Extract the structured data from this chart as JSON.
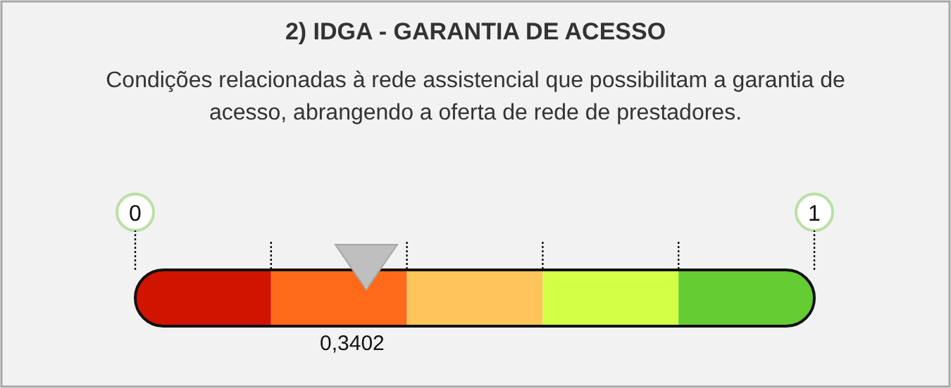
{
  "chart_data": {
    "type": "bar",
    "title": "2) IDGA - GARANTIA DE ACESSO",
    "subtitle": "Condições relacionadas à rede assistencial que possibilitam a garantia de acesso, abrangendo a oferta de rede de prestadores.",
    "orientation": "horizontal",
    "stacked": true,
    "categories": [
      null
    ],
    "series": [
      {
        "color": "#d11400",
        "values": [
          0.2
        ]
      },
      {
        "color": "#ff6a1a",
        "values": [
          0.2
        ]
      },
      {
        "color": "#ffc55a",
        "values": [
          0.2
        ]
      },
      {
        "color": "#d4ff47",
        "values": [
          0.2
        ]
      },
      {
        "color": "#66cc33",
        "values": [
          0.2
        ]
      }
    ],
    "xlim": [
      0,
      1
    ],
    "xticks": [
      0,
      1
    ],
    "ref_lines": [
      {
        "axis": "x",
        "value": 0.3402,
        "label": "0,3402",
        "color": "#bfbfbf"
      }
    ]
  }
}
